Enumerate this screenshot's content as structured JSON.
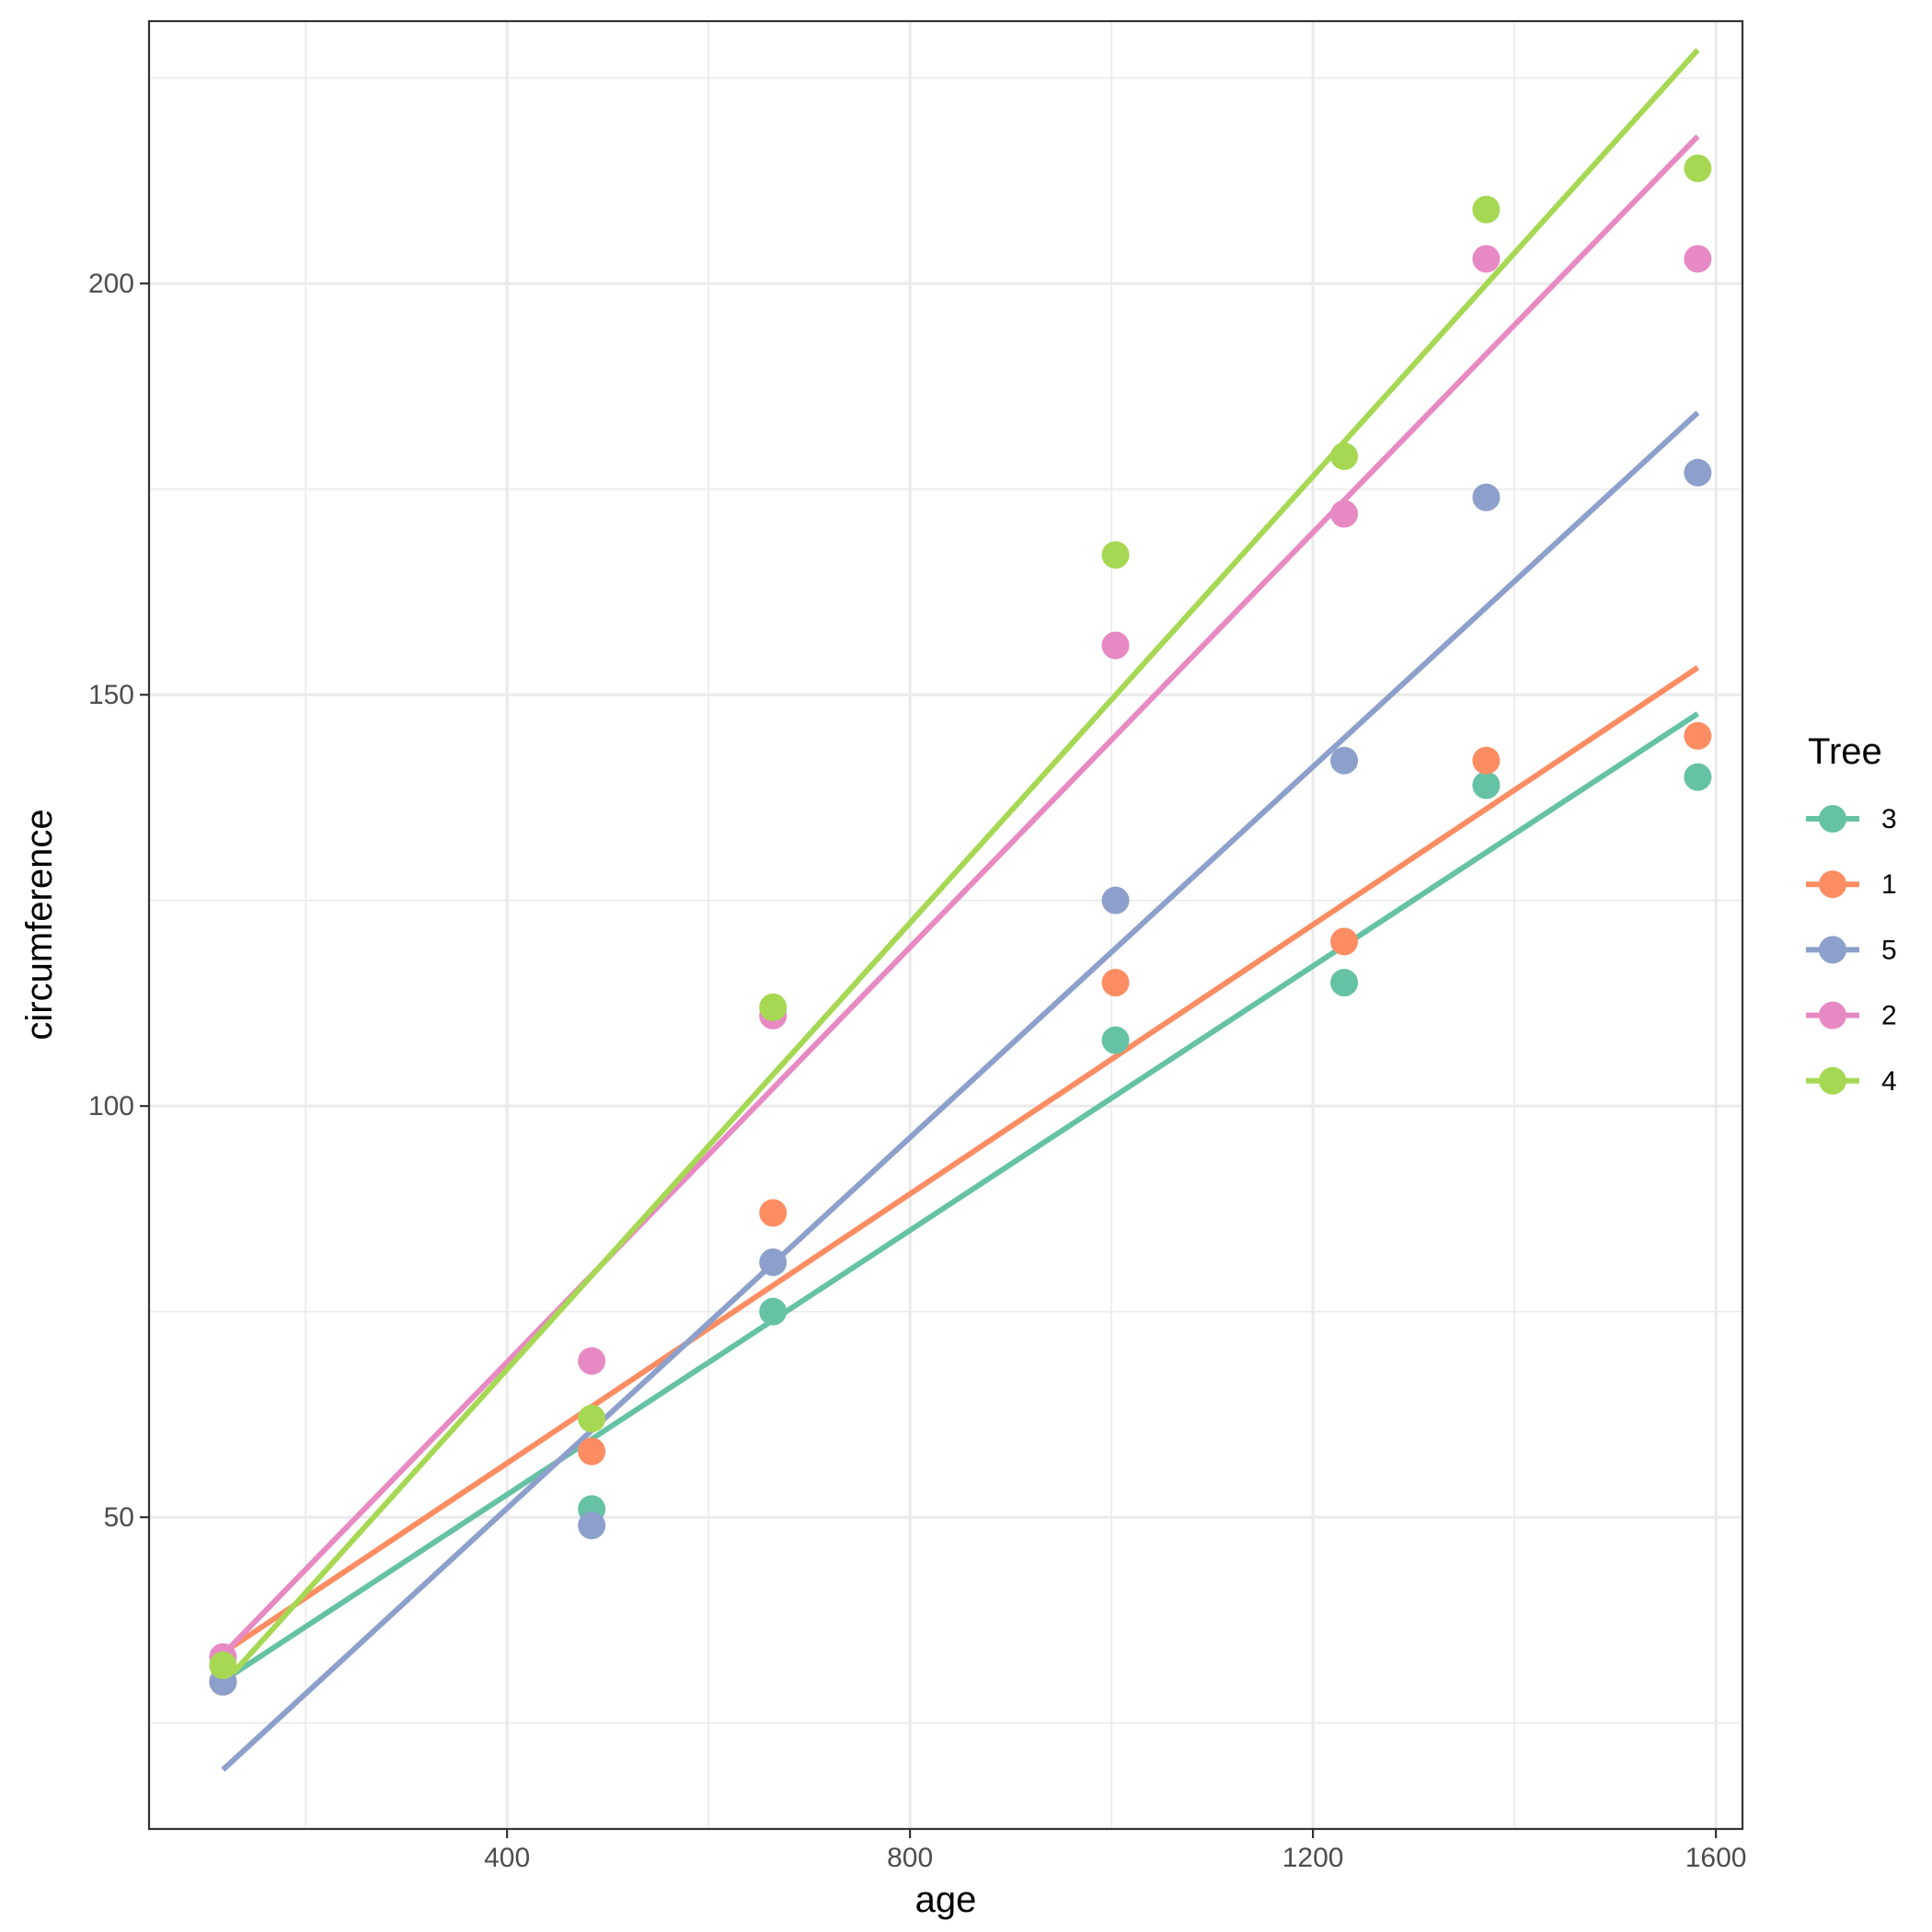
{
  "chart_data": {
    "type": "scatter",
    "title": "",
    "xlabel": "age",
    "ylabel": "circumference",
    "xlim": [
      44.6,
      1626.4
    ],
    "ylim": [
      12.1,
      231.9
    ],
    "x_ticks": [
      400,
      800,
      1200,
      1600
    ],
    "x_minor_ticks": [
      200,
      600,
      1000,
      1400
    ],
    "y_ticks": [
      50,
      100,
      150,
      200
    ],
    "y_minor_ticks": [
      25,
      75,
      125,
      175,
      225
    ],
    "grid": true,
    "legend": {
      "title": "Tree",
      "position": "right"
    },
    "x": [
      118,
      484,
      664,
      1004,
      1231,
      1372,
      1582
    ],
    "series": [
      {
        "name": "3",
        "color": "#66c2a5",
        "values": [
          30,
          51,
          75,
          108,
          115,
          139,
          140
        ],
        "fit": [
          [
            118,
            30.1
          ],
          [
            1582,
            147.7
          ]
        ]
      },
      {
        "name": "1",
        "color": "#fc8d62",
        "values": [
          30,
          58,
          87,
          115,
          120,
          142,
          145
        ],
        "fit": [
          [
            118,
            33.5
          ],
          [
            1582,
            153.3
          ]
        ]
      },
      {
        "name": "5",
        "color": "#8da0cb",
        "values": [
          30,
          49,
          81,
          125,
          142,
          174,
          177
        ],
        "fit": [
          [
            118,
            19.3
          ],
          [
            1582,
            184.3
          ]
        ]
      },
      {
        "name": "2",
        "color": "#e78ac3",
        "values": [
          33,
          69,
          111,
          156,
          172,
          203,
          203
        ],
        "fit": [
          [
            118,
            33.3
          ],
          [
            1582,
            217.9
          ]
        ]
      },
      {
        "name": "4",
        "color": "#a6d854",
        "values": [
          32,
          62,
          112,
          167,
          179,
          209,
          214
        ],
        "fit": [
          [
            118,
            29.7
          ],
          [
            1582,
            228.4
          ]
        ]
      }
    ]
  }
}
